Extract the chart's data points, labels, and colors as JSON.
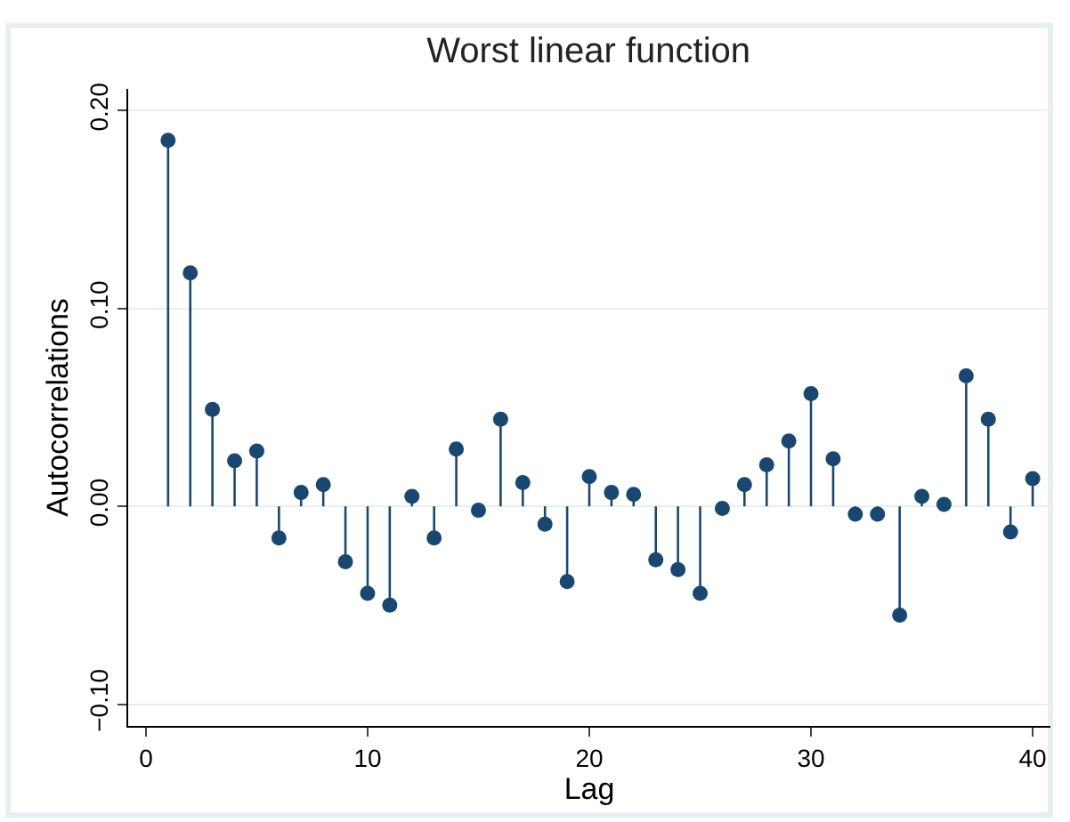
{
  "chart_data": {
    "type": "lollipop",
    "title": "Worst linear function",
    "xlabel": "Lag",
    "ylabel": "Autocorrelations",
    "x": [
      1,
      2,
      3,
      4,
      5,
      6,
      7,
      8,
      9,
      10,
      11,
      12,
      13,
      14,
      15,
      16,
      17,
      18,
      19,
      20,
      21,
      22,
      23,
      24,
      25,
      26,
      27,
      28,
      29,
      30,
      31,
      32,
      33,
      34,
      35,
      36,
      37,
      38,
      39,
      40
    ],
    "values": [
      0.185,
      0.118,
      0.049,
      0.023,
      0.028,
      -0.016,
      0.007,
      0.011,
      -0.028,
      -0.044,
      -0.05,
      0.005,
      -0.016,
      0.029,
      -0.002,
      0.044,
      0.012,
      -0.009,
      -0.038,
      0.015,
      0.007,
      0.006,
      -0.027,
      -0.032,
      -0.044,
      -0.001,
      0.011,
      0.021,
      0.033,
      0.057,
      0.024,
      -0.004,
      -0.004,
      -0.055,
      0.005,
      0.001,
      0.066,
      0.044,
      -0.013,
      0.014
    ],
    "color": "#1a476f",
    "marker": "circle",
    "xlim": [
      -0.8,
      40.8
    ],
    "xticks": [
      0,
      10,
      20,
      30,
      40
    ],
    "ylim": [
      -0.111,
      0.211
    ],
    "yticks": [
      {
        "value": -0.1,
        "label": "−0.10"
      },
      {
        "value": 0.0,
        "label": "0.00"
      },
      {
        "value": 0.1,
        "label": "0.10"
      },
      {
        "value": 0.2,
        "label": "0.20"
      }
    ],
    "grid": "y"
  }
}
